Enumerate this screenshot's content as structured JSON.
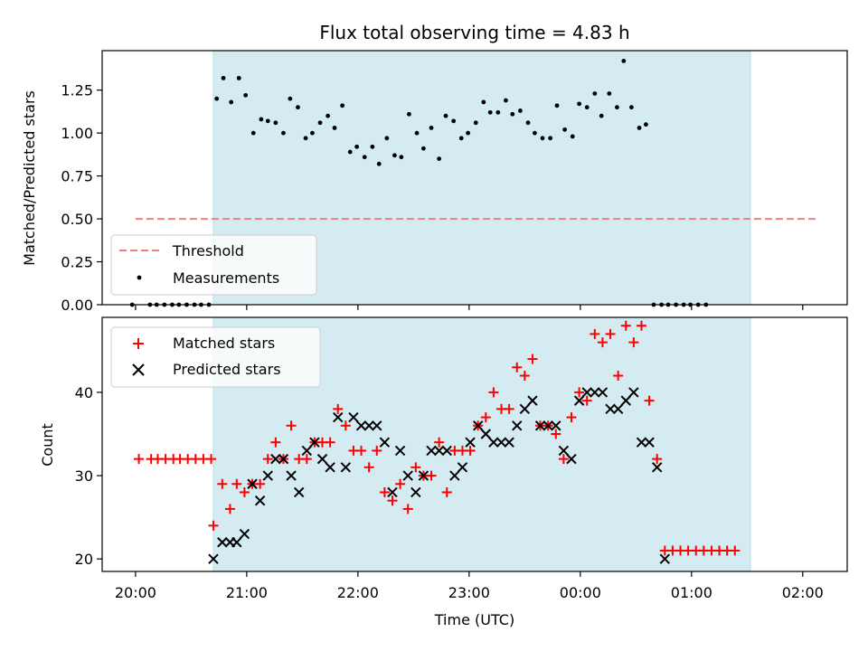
{
  "chart_data": {
    "title": "Flux total observing time = 4.83 h",
    "xlabel": "Time (UTC)",
    "x_unit": "hours since 20:00 UTC",
    "xlim": [
      -0.3,
      6.4
    ],
    "x_ticks": [
      {
        "x": 0,
        "label": "20:00"
      },
      {
        "x": 1,
        "label": "21:00"
      },
      {
        "x": 2,
        "label": "22:00"
      },
      {
        "x": 3,
        "label": "23:00"
      },
      {
        "x": 4,
        "label": "00:00"
      },
      {
        "x": 5,
        "label": "01:00"
      },
      {
        "x": 6,
        "label": "02:00"
      }
    ],
    "observing_window": {
      "start": 0.7,
      "end": 5.53,
      "color": "#d4ebf1"
    },
    "top": {
      "type": "scatter",
      "ylabel": "Matched/Predicted stars",
      "ylim": [
        0,
        1.48
      ],
      "yticks": [
        0,
        0.25,
        0.5,
        0.75,
        1.0,
        1.25
      ],
      "ytick_labels": [
        "0.00",
        "0.25",
        "0.50",
        "0.75",
        "1.00",
        "1.25"
      ],
      "threshold": {
        "name": "Threshold",
        "y": 0.5,
        "x": [
          0.0,
          6.12
        ],
        "color": "#f08080"
      },
      "measurements": {
        "name": "Measurements",
        "color": "#000000",
        "points": [
          [
            -0.03,
            0
          ],
          [
            0.13,
            0
          ],
          [
            0.19,
            0
          ],
          [
            0.26,
            0
          ],
          [
            0.33,
            0
          ],
          [
            0.39,
            0
          ],
          [
            0.46,
            0
          ],
          [
            0.53,
            0
          ],
          [
            0.59,
            0
          ],
          [
            0.66,
            0
          ],
          [
            0.73,
            1.2
          ],
          [
            0.79,
            1.32
          ],
          [
            0.86,
            1.18
          ],
          [
            0.93,
            1.32
          ],
          [
            0.99,
            1.22
          ],
          [
            1.06,
            1.0
          ],
          [
            1.13,
            1.08
          ],
          [
            1.19,
            1.07
          ],
          [
            1.26,
            1.06
          ],
          [
            1.33,
            1.0
          ],
          [
            1.39,
            1.2
          ],
          [
            1.46,
            1.15
          ],
          [
            1.53,
            0.97
          ],
          [
            1.59,
            1.0
          ],
          [
            1.66,
            1.06
          ],
          [
            1.73,
            1.1
          ],
          [
            1.79,
            1.03
          ],
          [
            1.86,
            1.16
          ],
          [
            1.93,
            0.89
          ],
          [
            1.99,
            0.92
          ],
          [
            2.06,
            0.86
          ],
          [
            2.13,
            0.92
          ],
          [
            2.19,
            0.82
          ],
          [
            2.26,
            0.97
          ],
          [
            2.33,
            0.87
          ],
          [
            2.39,
            0.86
          ],
          [
            2.46,
            1.11
          ],
          [
            2.53,
            1.0
          ],
          [
            2.59,
            0.91
          ],
          [
            2.66,
            1.03
          ],
          [
            2.73,
            0.85
          ],
          [
            2.79,
            1.1
          ],
          [
            2.86,
            1.07
          ],
          [
            2.93,
            0.97
          ],
          [
            2.99,
            1.0
          ],
          [
            3.06,
            1.06
          ],
          [
            3.13,
            1.18
          ],
          [
            3.19,
            1.12
          ],
          [
            3.26,
            1.12
          ],
          [
            3.33,
            1.19
          ],
          [
            3.39,
            1.11
          ],
          [
            3.46,
            1.13
          ],
          [
            3.53,
            1.06
          ],
          [
            3.59,
            1.0
          ],
          [
            3.66,
            0.97
          ],
          [
            3.73,
            0.97
          ],
          [
            3.79,
            1.16
          ],
          [
            3.86,
            1.02
          ],
          [
            3.93,
            0.98
          ],
          [
            3.99,
            1.17
          ],
          [
            4.06,
            1.15
          ],
          [
            4.13,
            1.23
          ],
          [
            4.19,
            1.1
          ],
          [
            4.26,
            1.23
          ],
          [
            4.33,
            1.15
          ],
          [
            4.39,
            1.42
          ],
          [
            4.46,
            1.15
          ],
          [
            4.53,
            1.03
          ],
          [
            4.59,
            1.05
          ],
          [
            4.66,
            0
          ],
          [
            4.73,
            0
          ],
          [
            4.79,
            0
          ],
          [
            4.86,
            0
          ],
          [
            4.93,
            0
          ],
          [
            4.99,
            0
          ],
          [
            5.06,
            0
          ],
          [
            5.13,
            0
          ]
        ]
      }
    },
    "bottom": {
      "type": "scatter",
      "ylabel": "Count",
      "ylim": [
        18.5,
        49
      ],
      "yticks": [
        20,
        30,
        40
      ],
      "ytick_labels": [
        "20",
        "30",
        "40"
      ],
      "matched": {
        "name": "Matched stars",
        "color": "#ff0000",
        "points": [
          [
            0.03,
            32
          ],
          [
            0.14,
            32
          ],
          [
            0.2,
            32
          ],
          [
            0.27,
            32
          ],
          [
            0.34,
            32
          ],
          [
            0.4,
            32
          ],
          [
            0.47,
            32
          ],
          [
            0.54,
            32
          ],
          [
            0.61,
            32
          ],
          [
            0.68,
            32
          ],
          [
            0.7,
            24
          ],
          [
            0.78,
            29
          ],
          [
            0.85,
            26
          ],
          [
            0.91,
            29
          ],
          [
            0.98,
            28
          ],
          [
            1.05,
            29
          ],
          [
            1.12,
            29
          ],
          [
            1.19,
            32
          ],
          [
            1.26,
            34
          ],
          [
            1.33,
            32
          ],
          [
            1.4,
            36
          ],
          [
            1.47,
            32
          ],
          [
            1.54,
            32
          ],
          [
            1.61,
            34
          ],
          [
            1.68,
            34
          ],
          [
            1.75,
            34
          ],
          [
            1.82,
            38
          ],
          [
            1.89,
            36
          ],
          [
            1.96,
            33
          ],
          [
            2.03,
            33
          ],
          [
            2.1,
            31
          ],
          [
            2.17,
            33
          ],
          [
            2.24,
            28
          ],
          [
            2.31,
            27
          ],
          [
            2.38,
            29
          ],
          [
            2.45,
            26
          ],
          [
            2.52,
            31
          ],
          [
            2.59,
            30
          ],
          [
            2.66,
            30
          ],
          [
            2.73,
            34
          ],
          [
            2.8,
            28
          ],
          [
            2.87,
            33
          ],
          [
            2.94,
            33
          ],
          [
            3.01,
            33
          ],
          [
            3.08,
            36
          ],
          [
            3.15,
            37
          ],
          [
            3.22,
            40
          ],
          [
            3.29,
            38
          ],
          [
            3.36,
            38
          ],
          [
            3.43,
            43
          ],
          [
            3.5,
            42
          ],
          [
            3.57,
            44
          ],
          [
            3.64,
            36
          ],
          [
            3.71,
            36
          ],
          [
            3.78,
            35
          ],
          [
            3.85,
            32
          ],
          [
            3.92,
            37
          ],
          [
            3.99,
            40
          ],
          [
            4.06,
            39
          ],
          [
            4.13,
            47
          ],
          [
            4.2,
            46
          ],
          [
            4.27,
            47
          ],
          [
            4.34,
            42
          ],
          [
            4.41,
            48
          ],
          [
            4.48,
            46
          ],
          [
            4.55,
            48
          ],
          [
            4.62,
            39
          ],
          [
            4.69,
            32
          ],
          [
            4.76,
            21
          ],
          [
            4.83,
            21
          ],
          [
            4.9,
            21
          ],
          [
            4.97,
            21
          ],
          [
            5.04,
            21
          ],
          [
            5.11,
            21
          ],
          [
            5.18,
            21
          ],
          [
            5.25,
            21
          ],
          [
            5.32,
            21
          ],
          [
            5.39,
            21
          ]
        ]
      },
      "predicted": {
        "name": "Predicted stars",
        "color": "#000000",
        "points": [
          [
            0.7,
            20
          ],
          [
            0.78,
            22
          ],
          [
            0.85,
            22
          ],
          [
            0.91,
            22
          ],
          [
            0.98,
            23
          ],
          [
            1.05,
            29
          ],
          [
            1.12,
            27
          ],
          [
            1.19,
            30
          ],
          [
            1.26,
            32
          ],
          [
            1.33,
            32
          ],
          [
            1.4,
            30
          ],
          [
            1.47,
            28
          ],
          [
            1.54,
            33
          ],
          [
            1.61,
            34
          ],
          [
            1.68,
            32
          ],
          [
            1.75,
            31
          ],
          [
            1.82,
            37
          ],
          [
            1.89,
            31
          ],
          [
            1.96,
            37
          ],
          [
            2.03,
            36
          ],
          [
            2.1,
            36
          ],
          [
            2.17,
            36
          ],
          [
            2.24,
            34
          ],
          [
            2.31,
            28
          ],
          [
            2.38,
            33
          ],
          [
            2.45,
            30
          ],
          [
            2.52,
            28
          ],
          [
            2.59,
            30
          ],
          [
            2.66,
            33
          ],
          [
            2.73,
            33
          ],
          [
            2.8,
            33
          ],
          [
            2.87,
            30
          ],
          [
            2.94,
            31
          ],
          [
            3.01,
            34
          ],
          [
            3.08,
            36
          ],
          [
            3.15,
            35
          ],
          [
            3.22,
            34
          ],
          [
            3.29,
            34
          ],
          [
            3.36,
            34
          ],
          [
            3.43,
            36
          ],
          [
            3.5,
            38
          ],
          [
            3.57,
            39
          ],
          [
            3.64,
            36
          ],
          [
            3.71,
            36
          ],
          [
            3.78,
            36
          ],
          [
            3.85,
            33
          ],
          [
            3.92,
            32
          ],
          [
            3.99,
            39
          ],
          [
            4.06,
            40
          ],
          [
            4.13,
            40
          ],
          [
            4.2,
            40
          ],
          [
            4.27,
            38
          ],
          [
            4.34,
            38
          ],
          [
            4.41,
            39
          ],
          [
            4.48,
            40
          ],
          [
            4.55,
            34
          ],
          [
            4.62,
            34
          ],
          [
            4.69,
            31
          ],
          [
            4.76,
            20
          ]
        ]
      }
    }
  }
}
